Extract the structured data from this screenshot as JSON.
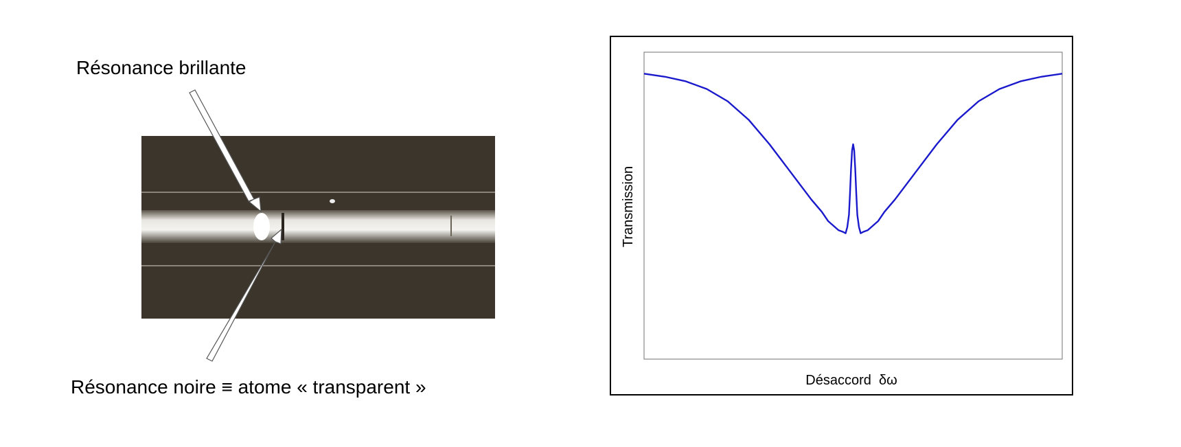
{
  "figure": {
    "top_label": "Résonance brillante",
    "bottom_label": "Résonance noire ≡ atome « transparent »"
  },
  "chart_data": {
    "type": "line",
    "xlabel": "Désaccord  δω",
    "ylabel": "Transmission",
    "x": [
      -1,
      -0.9,
      -0.8,
      -0.7,
      -0.6,
      -0.5,
      -0.4,
      -0.3,
      -0.2,
      -0.15,
      -0.12,
      -0.07,
      -0.05,
      -0.036,
      -0.028,
      -0.02,
      -0.015,
      -0.01,
      -0.005,
      0,
      0.005,
      0.01,
      0.015,
      0.02,
      0.028,
      0.036,
      0.05,
      0.07,
      0.12,
      0.15,
      0.2,
      0.3,
      0.4,
      0.5,
      0.6,
      0.7,
      0.8,
      0.9,
      1
    ],
    "series": [
      {
        "color": "#1a1acc",
        "values": [
          0.93,
          0.92,
          0.905,
          0.88,
          0.84,
          0.78,
          0.7,
          0.61,
          0.52,
          0.48,
          0.45,
          0.42,
          0.415,
          0.41,
          0.43,
          0.47,
          0.54,
          0.62,
          0.68,
          0.7,
          0.68,
          0.62,
          0.54,
          0.47,
          0.43,
          0.41,
          0.415,
          0.42,
          0.45,
          0.48,
          0.52,
          0.61,
          0.7,
          0.78,
          0.84,
          0.88,
          0.905,
          0.92,
          0.93
        ]
      }
    ],
    "xlim": [
      -1,
      1
    ],
    "ylim": [
      0,
      1
    ]
  }
}
